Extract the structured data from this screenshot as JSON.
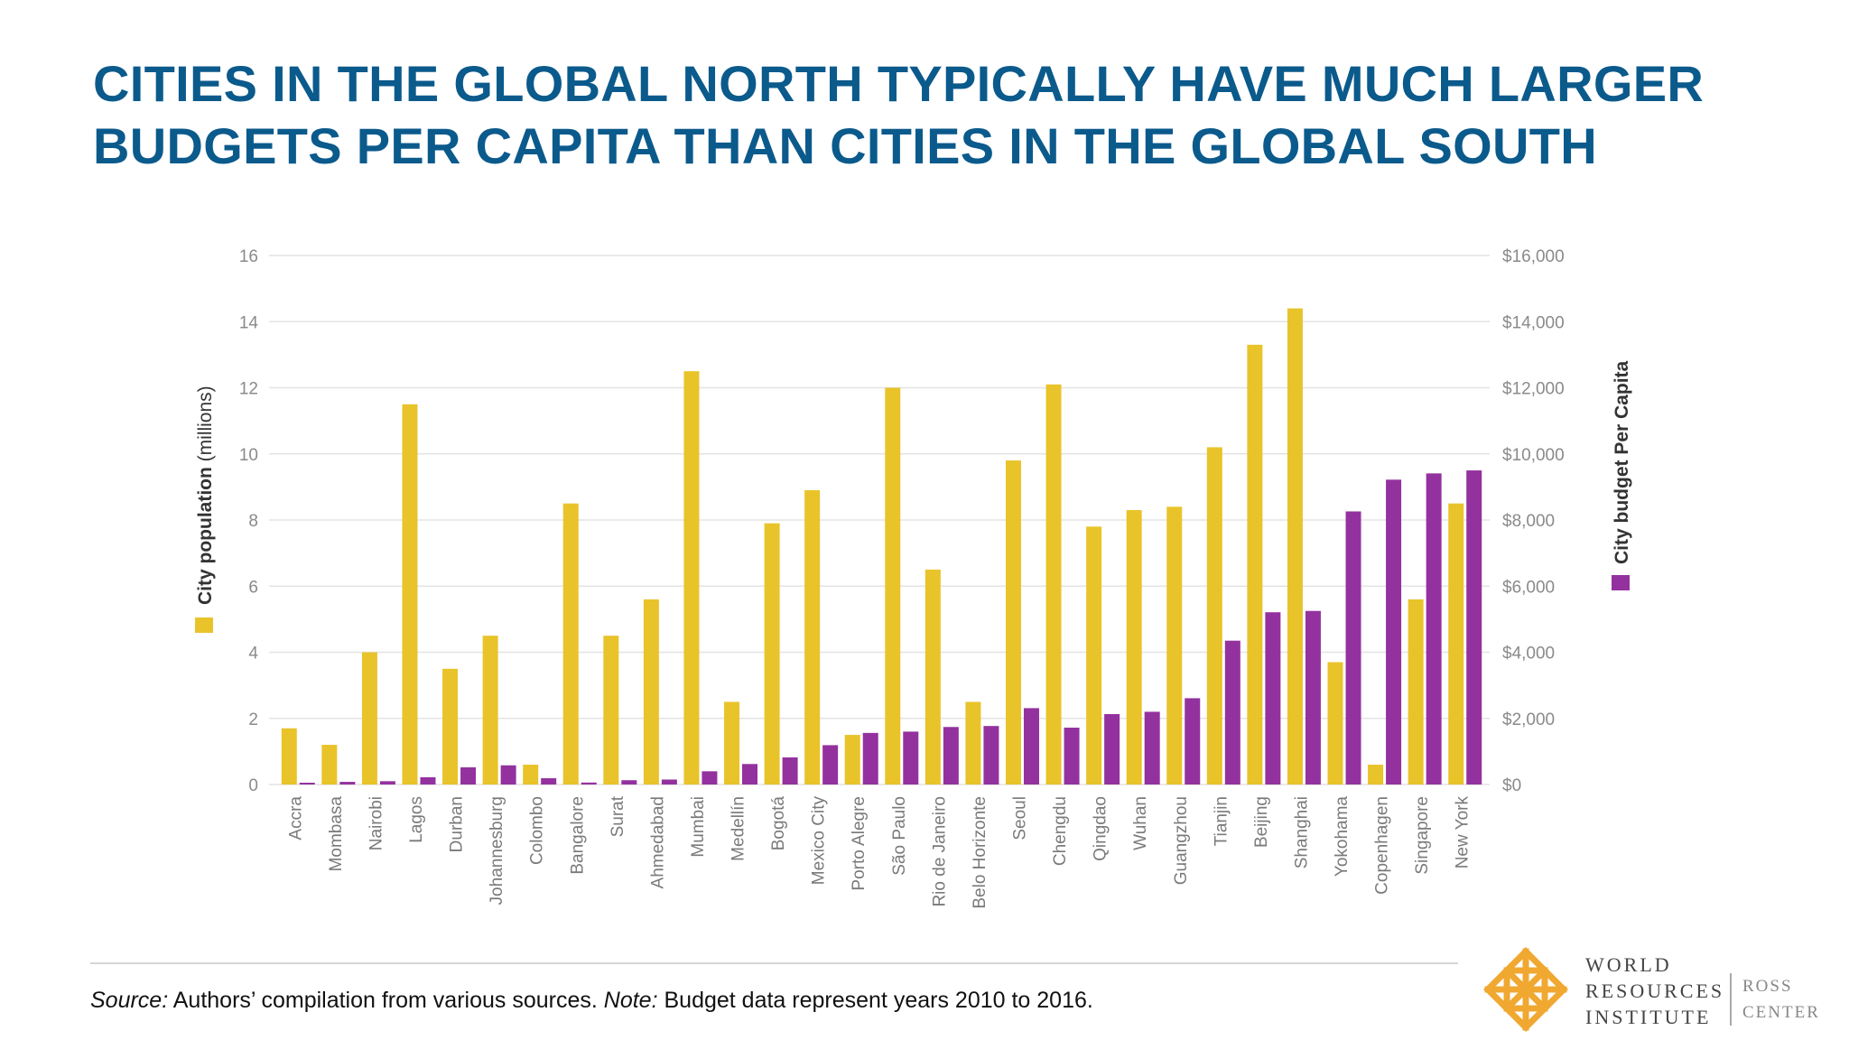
{
  "header": {
    "title_line1": "CITIES IN THE GLOBAL NORTH TYPICALLY HAVE MUCH LARGER",
    "title_line2": "BUDGETS PER CAPITA THAN CITIES IN THE GLOBAL SOUTH"
  },
  "footer": {
    "source_label": "Source:",
    "source_text": " Authors’ compilation from various sources.  ",
    "note_label": "Note:",
    "note_text": " Budget data represent years 2010 to 2016."
  },
  "logo": {
    "line1": "WORLD",
    "line2": "RESOURCES",
    "line3": "INSTITUTE",
    "ross1": "ROSS",
    "ross2": "CENTER"
  },
  "colors": {
    "title": "#0b5a8c",
    "population": "#e9c32a",
    "budget": "#93329e",
    "logo": "#f0a830"
  },
  "chart_data": {
    "type": "bar",
    "categories": [
      "Accra",
      "Mombasa",
      "Nairobi",
      "Lagos",
      "Durban",
      "Johannesburg",
      "Colombo",
      "Bangalore",
      "Surat",
      "Ahmedabad",
      "Mumbai",
      "Medellín",
      "Bogotá",
      "Mexico City",
      "Porto Alegre",
      "São Paulo",
      "Rio de Janeiro",
      "Belo Horizonte",
      "Seoul",
      "Chengdu",
      "Qingdao",
      "Wuhan",
      "Guangzhou",
      "Tianjin",
      "Beijing",
      "Shanghai",
      "Yokohama",
      "Copenhagen",
      "Singapore",
      "New York"
    ],
    "series": [
      {
        "axis": "left",
        "values": [
          1.7,
          1.2,
          4.0,
          11.5,
          3.5,
          4.5,
          0.6,
          8.5,
          4.5,
          5.6,
          12.5,
          2.5,
          7.9,
          8.9,
          1.5,
          12.0,
          6.5,
          2.5,
          9.8,
          12.1,
          7.8,
          8.3,
          8.4,
          10.2,
          13.3,
          14.4,
          3.7,
          0.6,
          5.6,
          8.5
        ]
      },
      {
        "axis": "right",
        "values": [
          20,
          80,
          100,
          220,
          520,
          580,
          190,
          60,
          130,
          150,
          400,
          620,
          820,
          1190,
          1560,
          1600,
          1740,
          1770,
          2310,
          1720,
          2130,
          2200,
          2610,
          4350,
          5210,
          5250,
          8260,
          9220,
          9410,
          9500
        ]
      }
    ],
    "yleft": {
      "label_bold": "City population",
      "label_normal": " (millions)",
      "ticks": [
        "0",
        "2",
        "4",
        "6",
        "8",
        "10",
        "12",
        "14",
        "16"
      ],
      "range": [
        0,
        16
      ]
    },
    "yright": {
      "label": "City budget Per Capita",
      "ticks": [
        "$0",
        "$2,000",
        "$4,000",
        "$6,000",
        "$8,000",
        "$10,000",
        "$12,000",
        "$14,000",
        "$16,000"
      ],
      "range": [
        0,
        16000
      ]
    },
    "grid": true,
    "legend": "swatches beside rotated axis titles"
  }
}
